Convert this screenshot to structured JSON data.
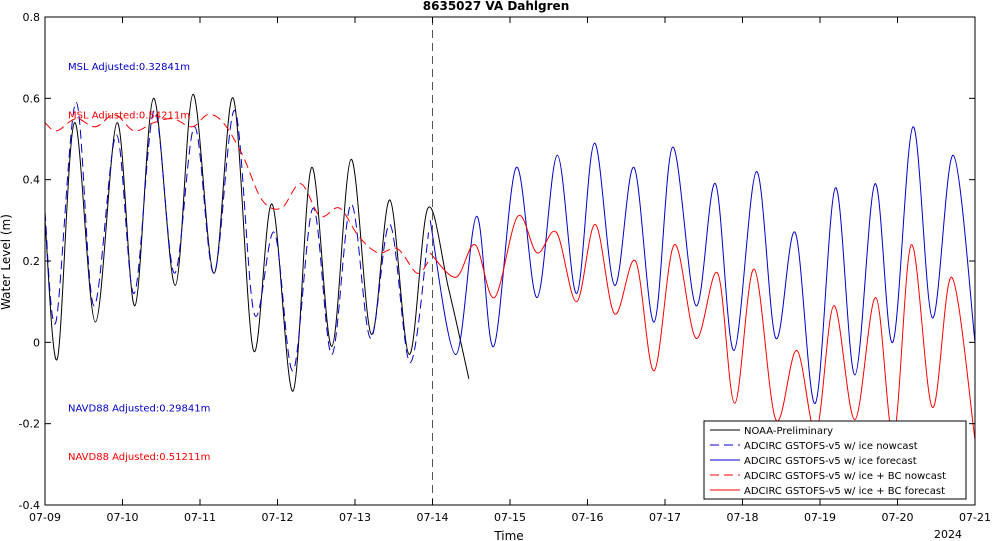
{
  "chart_data": {
    "type": "line",
    "title": "8635027 VA Dahlgren",
    "xlabel": "Time",
    "ylabel": "Water Level (m)",
    "year_label": "2024",
    "xlim": [
      "07-09",
      "07-21"
    ],
    "ylim": [
      -0.4,
      0.8
    ],
    "x_ticks": [
      "07-09",
      "07-10",
      "07-11",
      "07-12",
      "07-13",
      "07-14",
      "07-15",
      "07-16",
      "07-17",
      "07-18",
      "07-19",
      "07-20",
      "07-21"
    ],
    "y_ticks": [
      "-0.4",
      "-0.2",
      "0",
      "0.2",
      "0.4",
      "0.6",
      "0.8"
    ],
    "y_tick_values": [
      -0.4,
      -0.2,
      0,
      0.2,
      0.4,
      0.6,
      0.8
    ],
    "grid": false,
    "legend_position": "bottom-right",
    "nowcast_forecast_divider": "07-14",
    "annotations": [
      {
        "text": "MSL Adjusted:0.32841m",
        "color": "#0000cc"
      },
      {
        "text": "MSL Adjusted:0.54211m",
        "color": "#ff0000"
      },
      {
        "text": "NAVD88 Adjusted:0.29841m",
        "color": "#0000cc"
      },
      {
        "text": "NAVD88 Adjusted:0.51211m",
        "color": "#ff0000"
      }
    ],
    "x_units": "days since 07-09 00:00",
    "series": [
      {
        "name": "NOAA-Preliminary",
        "color": "#000000",
        "dash": "solid",
        "x": [
          0.0,
          0.16,
          0.38,
          0.65,
          0.93,
          1.16,
          1.4,
          1.68,
          1.91,
          2.18,
          2.43,
          2.69,
          2.93,
          3.2,
          3.44,
          3.7,
          3.95,
          4.21,
          4.45,
          4.7,
          4.94,
          5.21,
          5.47
        ],
        "y": [
          0.3,
          -0.04,
          0.54,
          0.05,
          0.54,
          0.09,
          0.6,
          0.14,
          0.61,
          0.17,
          0.6,
          -0.02,
          0.34,
          -0.12,
          0.43,
          -0.01,
          0.45,
          0.02,
          0.35,
          -0.03,
          0.33,
          0.13,
          -0.09
        ]
      },
      {
        "name": "ADCIRC GSTOFS-v5 w/ ice nowcast",
        "color": "#0000cc",
        "dash": "dashed",
        "x": [
          0.0,
          0.14,
          0.4,
          0.63,
          0.92,
          1.15,
          1.41,
          1.67,
          1.93,
          2.18,
          2.45,
          2.7,
          2.96,
          3.2,
          3.46,
          3.7,
          3.95,
          4.2,
          4.45,
          4.71,
          4.95
        ],
        "y": [
          0.32,
          0.05,
          0.59,
          0.09,
          0.51,
          0.12,
          0.57,
          0.17,
          0.53,
          0.17,
          0.57,
          0.07,
          0.27,
          -0.07,
          0.33,
          -0.03,
          0.34,
          0.01,
          0.29,
          -0.05,
          0.27
        ]
      },
      {
        "name": "ADCIRC GSTOFS-v5 w/ ice forecast",
        "color": "#0000cc",
        "dash": "solid",
        "x": [
          4.97,
          5.3,
          5.57,
          5.79,
          6.08,
          6.35,
          6.61,
          6.86,
          7.09,
          7.35,
          7.6,
          7.86,
          8.1,
          8.4,
          8.65,
          8.89,
          9.18,
          9.43,
          9.68,
          9.94,
          10.2,
          10.45,
          10.71,
          10.94,
          11.2,
          11.45,
          11.72,
          12.0
        ],
        "y": [
          0.3,
          -0.03,
          0.31,
          -0.01,
          0.43,
          0.11,
          0.46,
          0.12,
          0.49,
          0.14,
          0.43,
          0.05,
          0.48,
          0.09,
          0.39,
          -0.02,
          0.42,
          0.01,
          0.27,
          -0.15,
          0.38,
          -0.08,
          0.39,
          0.0,
          0.53,
          0.06,
          0.46,
          0.0
        ]
      },
      {
        "name": "ADCIRC GSTOFS-v5 w/ ice + BC nowcast",
        "color": "#ff0000",
        "dash": "dashed",
        "x": [
          0.0,
          0.15,
          0.4,
          0.65,
          0.9,
          1.15,
          1.4,
          1.65,
          1.9,
          2.1,
          2.3,
          2.55,
          2.8,
          3.05,
          3.3,
          3.55,
          3.8,
          4.05,
          4.3,
          4.55,
          4.8,
          4.95
        ],
        "y": [
          0.54,
          0.52,
          0.55,
          0.53,
          0.56,
          0.52,
          0.54,
          0.55,
          0.53,
          0.56,
          0.54,
          0.46,
          0.35,
          0.33,
          0.39,
          0.31,
          0.33,
          0.26,
          0.22,
          0.23,
          0.17,
          0.2
        ]
      },
      {
        "name": "ADCIRC GSTOFS-v5 w/ ice + BC forecast",
        "color": "#ff0000",
        "dash": "solid",
        "x": [
          4.97,
          5.3,
          5.55,
          5.8,
          6.1,
          6.35,
          6.6,
          6.86,
          7.1,
          7.35,
          7.62,
          7.86,
          8.12,
          8.4,
          8.68,
          8.9,
          9.15,
          9.43,
          9.7,
          9.95,
          10.18,
          10.45,
          10.72,
          10.95,
          11.18,
          11.45,
          11.7,
          12.0
        ],
        "y": [
          0.22,
          0.16,
          0.24,
          0.11,
          0.31,
          0.22,
          0.27,
          0.1,
          0.29,
          0.07,
          0.2,
          -0.07,
          0.24,
          0.01,
          0.17,
          -0.15,
          0.18,
          -0.19,
          -0.02,
          -0.22,
          0.09,
          -0.19,
          0.11,
          -0.23,
          0.24,
          -0.16,
          0.16,
          -0.24
        ]
      }
    ]
  }
}
